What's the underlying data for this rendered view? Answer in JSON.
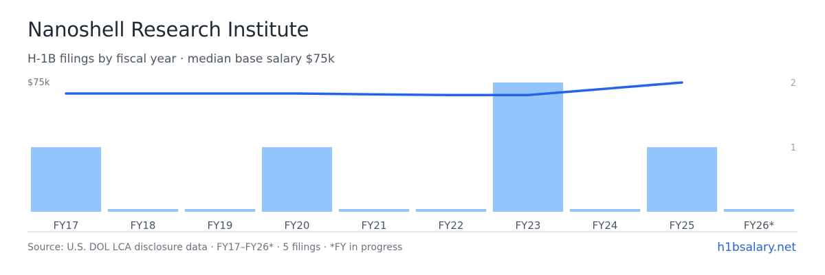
{
  "header": {
    "title": "Nanoshell Research Institute",
    "subtitle": "H-1B filings by fiscal year · median base salary $75k"
  },
  "colors": {
    "bar": "#93c5fd",
    "line": "#2563eb",
    "axis_text": "#6b7280",
    "right_axis_text": "#9ca3af",
    "baseline": "#d1d5db",
    "brand": "#2563eb"
  },
  "chart_data": {
    "type": "bar",
    "categories": [
      "FY17",
      "FY18",
      "FY19",
      "FY20",
      "FY21",
      "FY22",
      "FY23",
      "FY24",
      "FY25",
      "FY26*"
    ],
    "series": [
      {
        "type": "bar",
        "axis": "right",
        "values": [
          1,
          0,
          0,
          1,
          0,
          0,
          2,
          0,
          1,
          0
        ]
      },
      {
        "type": "line",
        "axis": "left",
        "values": [
          75000,
          75000,
          75000,
          75000,
          74500,
          74000,
          74000,
          null,
          82000,
          null
        ]
      }
    ],
    "left_axis": {
      "tick_labels": [
        "$75k"
      ],
      "ylim": [
        0,
        82000
      ]
    },
    "right_axis": {
      "ticks": [
        1,
        2
      ],
      "ylim": [
        0,
        2
      ]
    },
    "legend": "none",
    "grid": false
  },
  "footer": {
    "source": "Source: U.S. DOL LCA disclosure data · FY17–FY26* · 5 filings · *FY in progress",
    "brand": "h1bsalary.net"
  }
}
